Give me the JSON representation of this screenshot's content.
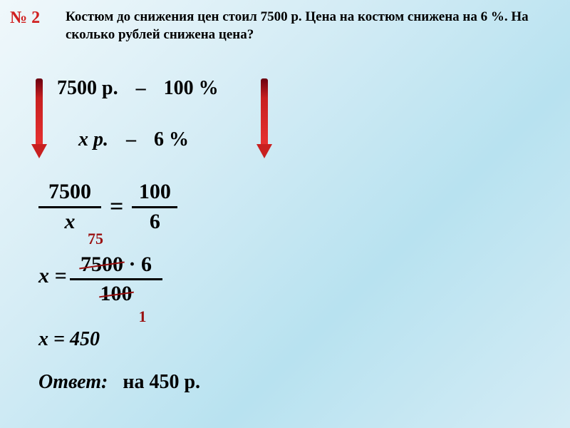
{
  "problem": {
    "number": "№ 2",
    "text": "Костюм до снижения цен стоил 7500 р. Цена на костюм снижена на 6 %. На сколько рублей снижена цена?"
  },
  "setup": {
    "line1_value": "7500 р.",
    "line1_pct": "100 %",
    "line2_value": "х р.",
    "line2_pct": "6 %",
    "dash": "–"
  },
  "proportion": {
    "frac1_num": "7500",
    "frac1_den": "х",
    "equals": "=",
    "frac2_num": "100",
    "frac2_den": "6"
  },
  "solve": {
    "lhs": "х =",
    "num_a": "7500",
    "num_dot": "·",
    "num_b": "6",
    "den": "100",
    "cancel_top": "75",
    "cancel_bottom": "1"
  },
  "result": {
    "line": "х = 450"
  },
  "answer": {
    "label": "Ответ:",
    "value": "на 450 р."
  },
  "style": {
    "accent_color": "#d02020",
    "cancel_color": "#9a1010",
    "text_color": "#000000",
    "bg_gradient_from": "#f0f8fb",
    "bg_gradient_to": "#b8e2f0"
  }
}
